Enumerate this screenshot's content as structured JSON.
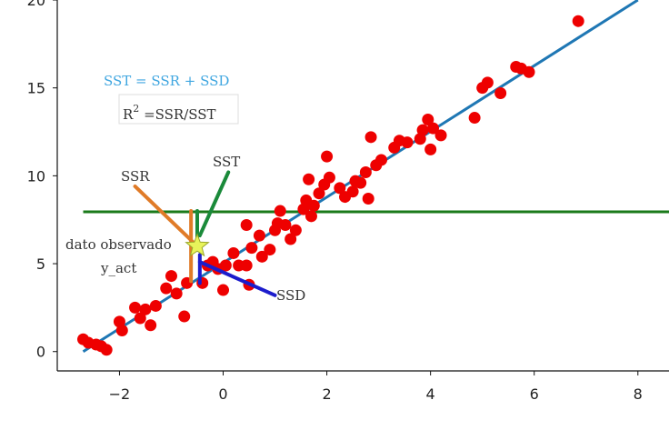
{
  "chart_data": {
    "type": "scatter",
    "xlim": [
      -3.2,
      8.6
    ],
    "ylim": [
      -1.1,
      20
    ],
    "xticks": [
      -2,
      0,
      2,
      4,
      6,
      8
    ],
    "yticks": [
      0,
      5,
      10,
      15,
      20
    ],
    "xtick_labels": [
      "−2",
      "0",
      "2",
      "4",
      "6",
      "8"
    ],
    "ytick_labels": [
      "0",
      "5",
      "10",
      "15",
      "20"
    ],
    "points": [
      [
        -2.7,
        0.7
      ],
      [
        -2.6,
        0.5
      ],
      [
        -2.45,
        0.4
      ],
      [
        -2.35,
        0.3
      ],
      [
        -2.25,
        0.1
      ],
      [
        -2.0,
        1.7
      ],
      [
        -1.95,
        1.2
      ],
      [
        -1.7,
        2.5
      ],
      [
        -1.6,
        1.9
      ],
      [
        -1.5,
        2.4
      ],
      [
        -1.4,
        1.5
      ],
      [
        -1.3,
        2.6
      ],
      [
        -1.1,
        3.6
      ],
      [
        -1.0,
        4.3
      ],
      [
        -0.9,
        3.3
      ],
      [
        -0.75,
        2.0
      ],
      [
        -0.7,
        3.9
      ],
      [
        -0.4,
        3.9
      ],
      [
        -0.3,
        4.9
      ],
      [
        -0.2,
        5.1
      ],
      [
        -0.1,
        4.7
      ],
      [
        0.0,
        3.5
      ],
      [
        0.05,
        4.9
      ],
      [
        0.2,
        5.6
      ],
      [
        0.3,
        4.9
      ],
      [
        0.45,
        4.9
      ],
      [
        0.5,
        3.8
      ],
      [
        0.45,
        7.2
      ],
      [
        0.55,
        5.9
      ],
      [
        0.7,
        6.6
      ],
      [
        0.75,
        5.4
      ],
      [
        0.9,
        5.8
      ],
      [
        1.0,
        6.9
      ],
      [
        1.05,
        7.3
      ],
      [
        1.1,
        8.0
      ],
      [
        1.2,
        7.2
      ],
      [
        1.3,
        6.4
      ],
      [
        1.4,
        6.9
      ],
      [
        1.55,
        8.1
      ],
      [
        1.6,
        8.6
      ],
      [
        1.7,
        7.7
      ],
      [
        1.75,
        8.3
      ],
      [
        1.85,
        9.0
      ],
      [
        1.95,
        9.5
      ],
      [
        2.05,
        9.9
      ],
      [
        2.0,
        11.1
      ],
      [
        1.65,
        9.8
      ],
      [
        2.25,
        9.3
      ],
      [
        2.35,
        8.8
      ],
      [
        2.5,
        9.1
      ],
      [
        2.55,
        9.7
      ],
      [
        2.65,
        9.6
      ],
      [
        2.75,
        10.2
      ],
      [
        2.8,
        8.7
      ],
      [
        2.85,
        12.2
      ],
      [
        2.95,
        10.6
      ],
      [
        3.05,
        10.9
      ],
      [
        3.3,
        11.6
      ],
      [
        3.4,
        12.0
      ],
      [
        3.55,
        11.9
      ],
      [
        3.8,
        12.1
      ],
      [
        3.85,
        12.6
      ],
      [
        3.95,
        13.2
      ],
      [
        4.05,
        12.7
      ],
      [
        4.0,
        11.5
      ],
      [
        4.2,
        12.3
      ],
      [
        4.85,
        13.3
      ],
      [
        5.0,
        15.0
      ],
      [
        5.1,
        15.3
      ],
      [
        5.35,
        14.7
      ],
      [
        5.65,
        16.2
      ],
      [
        5.75,
        16.1
      ],
      [
        5.9,
        15.9
      ],
      [
        6.85,
        18.8
      ]
    ],
    "regression_line": {
      "x": [
        -2.7,
        8.0
      ],
      "y": [
        0.0,
        20.0
      ],
      "color": "#1f77b4"
    },
    "mean_line": {
      "y": 7.95,
      "color": "#1a7a1a"
    },
    "highlight_point": {
      "x": -0.5,
      "y": 6.0,
      "color": "#e8f35a"
    },
    "point_color": "#ee0000",
    "segments": [
      {
        "name": "ssr-line",
        "x": [
          -1.7,
          -0.5
        ],
        "y": [
          9.4,
          6.0
        ],
        "color": "#e07b28"
      },
      {
        "name": "ssr-vertical",
        "x": [
          -0.62,
          -0.62
        ],
        "y": [
          8.0,
          4.0
        ],
        "color": "#e07b28"
      },
      {
        "name": "sst-line",
        "x": [
          0.1,
          -0.45
        ],
        "y": [
          10.2,
          6.6
        ],
        "color": "#1a8a3a"
      },
      {
        "name": "sst-vertical",
        "x": [
          -0.5,
          -0.5
        ],
        "y": [
          8.0,
          6.2
        ],
        "color": "#1a8a3a"
      },
      {
        "name": "ssd-line",
        "x": [
          -0.45,
          1.0
        ],
        "y": [
          5.1,
          3.2
        ],
        "color": "#1c1ccc"
      },
      {
        "name": "ssd-vertical",
        "x": [
          -0.45,
          -0.45
        ],
        "y": [
          5.5,
          3.9
        ],
        "color": "#1c1ccc"
      }
    ],
    "annotations": {
      "formula": "SST = SSR + SSD",
      "r2_base": "R",
      "r2_exp": "2",
      "r2_rest": " =SSR/SST",
      "ssr": "SSR",
      "sst": "SST",
      "ssd": "SSD",
      "observed_line1": "dato observado",
      "observed_line2": "y_act"
    }
  }
}
